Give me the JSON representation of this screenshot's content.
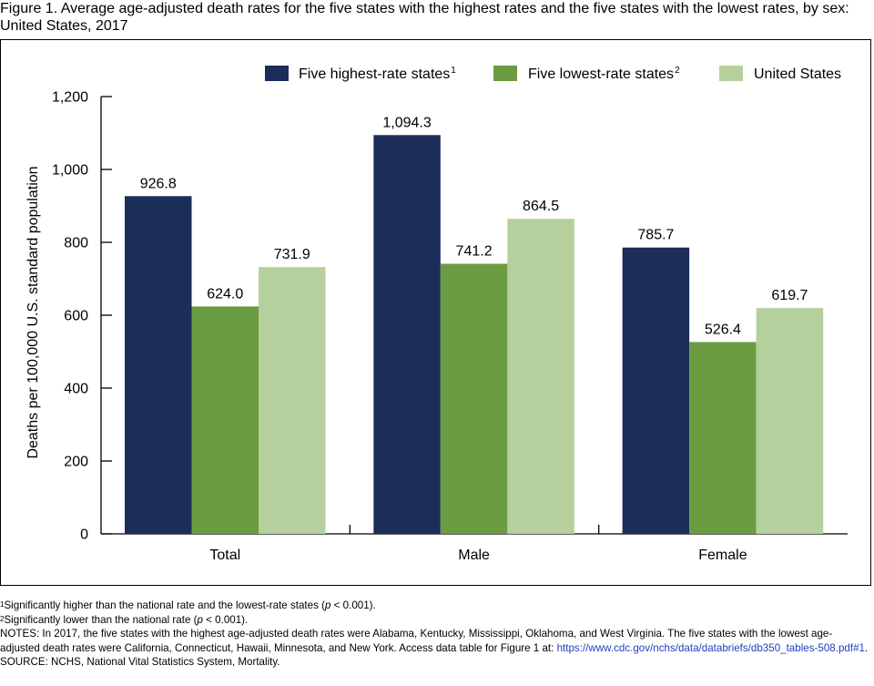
{
  "figure_title": {
    "prefix": "Figure 1. ",
    "text": "Average age-adjusted death rates for the five states with the highest rates and the five states with the lowest rates, by sex: United States, 2017"
  },
  "colors": {
    "highest": "#1c2d5a",
    "lowest": "#6b9c41",
    "us": "#b5d09c"
  },
  "chart_data": {
    "type": "bar",
    "categories": [
      "Total",
      "Male",
      "Female"
    ],
    "series": [
      {
        "name": "Five highest-rate states",
        "sup": "1",
        "values": [
          926.8,
          1094.3,
          785.7
        ],
        "labels": [
          "926.8",
          "1,094.3",
          "785.7"
        ]
      },
      {
        "name": "Five lowest-rate states",
        "sup": "2",
        "values": [
          624.0,
          741.2,
          526.4
        ],
        "labels": [
          "624.0",
          "741.2",
          "526.4"
        ]
      },
      {
        "name": "United States",
        "sup": "",
        "values": [
          731.9,
          864.5,
          619.7
        ],
        "labels": [
          "731.9",
          "864.5",
          "619.7"
        ]
      }
    ],
    "ylabel": "Deaths per 100,000 U.S. standard population",
    "ylim": [
      0,
      1200
    ],
    "yticks": [
      0,
      200,
      400,
      600,
      800,
      1000,
      1200
    ],
    "ytick_labels": [
      "0",
      "200",
      "400",
      "600",
      "800",
      "1,000",
      "1,200"
    ],
    "legend_position": "top-right",
    "grid": false
  },
  "footnotes": {
    "f1_sup": "1",
    "f1_text_a": "Significantly higher than the national rate and the lowest-rate states (",
    "f1_p": "p",
    "f1_text_b": " < 0.001).",
    "f2_sup": "2",
    "f2_text_a": "Significantly lower than the national rate (",
    "f2_p": "p",
    "f2_text_b": " < 0.001).",
    "notes_text": "NOTES: In 2017, the five states with the highest age-adjusted death rates were Alabama, Kentucky, Mississippi, Oklahoma, and West Virginia. The five states with the lowest age-adjusted death rates were California, Connecticut, Hawaii, Minnesota, and New York. Access data table for Figure 1 at: ",
    "notes_link": "https://www.cdc.gov/nchs/data/databriefs/db350_tables-508.pdf#1",
    "notes_end": ".",
    "source": "SOURCE: NCHS, National Vital Statistics System, Mortality."
  }
}
